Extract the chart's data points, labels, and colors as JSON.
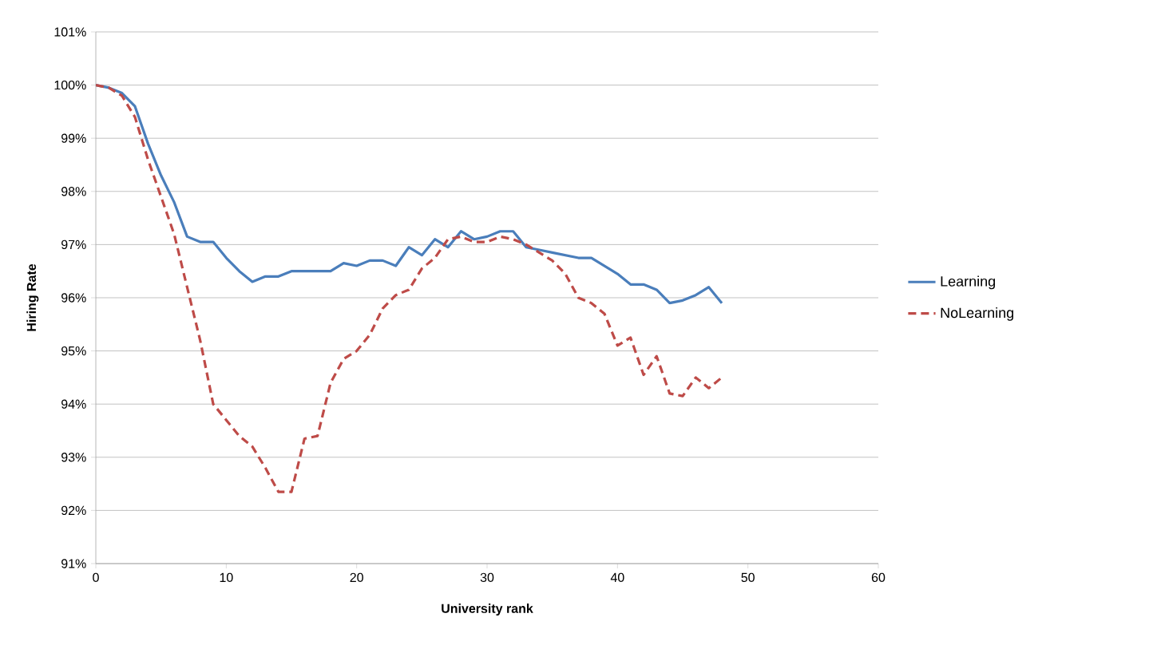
{
  "chart_data": {
    "type": "line",
    "xlabel": "University rank",
    "ylabel": "Hiring Rate",
    "x": [
      0,
      1,
      2,
      3,
      4,
      5,
      6,
      7,
      8,
      9,
      10,
      11,
      12,
      13,
      14,
      15,
      16,
      17,
      18,
      19,
      20,
      21,
      22,
      23,
      24,
      25,
      26,
      27,
      28,
      29,
      30,
      31,
      32,
      33,
      34,
      35,
      36,
      37,
      38,
      39,
      40,
      41,
      42,
      43,
      44,
      45,
      46,
      47,
      48
    ],
    "series": [
      {
        "name": "Learning",
        "color": "#4a7ebb",
        "line_style": "solid",
        "values": [
          100,
          99.95,
          99.85,
          99.6,
          98.9,
          98.3,
          97.8,
          97.15,
          97.05,
          97.05,
          96.75,
          96.5,
          96.3,
          96.4,
          96.4,
          96.5,
          96.5,
          96.5,
          96.5,
          96.65,
          96.6,
          96.7,
          96.7,
          96.6,
          96.95,
          96.8,
          97.1,
          96.95,
          97.25,
          97.1,
          97.15,
          97.25,
          97.25,
          96.95,
          96.9,
          96.85,
          96.8,
          96.75,
          96.75,
          96.6,
          96.45,
          96.25,
          96.25,
          96.15,
          95.9,
          95.95,
          96.05,
          96.2,
          95.9
        ]
      },
      {
        "name": "NoLearning",
        "color": "#be4b48",
        "line_style": "dashed",
        "values": [
          100,
          99.95,
          99.8,
          99.4,
          98.6,
          97.9,
          97.2,
          96.2,
          95.2,
          94.0,
          93.7,
          93.4,
          93.2,
          92.8,
          92.35,
          92.35,
          93.35,
          93.4,
          94.4,
          94.85,
          95.0,
          95.3,
          95.8,
          96.05,
          96.15,
          96.55,
          96.75,
          97.1,
          97.15,
          97.05,
          97.05,
          97.15,
          97.1,
          97.0,
          96.85,
          96.7,
          96.45,
          96.0,
          95.9,
          95.7,
          95.1,
          95.25,
          94.55,
          94.9,
          94.2,
          94.15,
          94.5,
          94.3,
          94.5
        ]
      }
    ],
    "xlim": [
      0,
      60
    ],
    "xticks": [
      0,
      10,
      20,
      30,
      40,
      50,
      60
    ],
    "ylim": [
      91,
      101
    ],
    "yticks": [
      {
        "value": 91,
        "label": "91%"
      },
      {
        "value": 92,
        "label": "92%"
      },
      {
        "value": 93,
        "label": "93%"
      },
      {
        "value": 94,
        "label": "94%"
      },
      {
        "value": 95,
        "label": "95%"
      },
      {
        "value": 96,
        "label": "96%"
      },
      {
        "value": 97,
        "label": "97%"
      },
      {
        "value": 98,
        "label": "98%"
      },
      {
        "value": 99,
        "label": "99%"
      },
      {
        "value": 100,
        "label": "100%"
      },
      {
        "value": 101,
        "label": "101%"
      }
    ],
    "grid": "y",
    "legend": "right",
    "marker": "none"
  }
}
